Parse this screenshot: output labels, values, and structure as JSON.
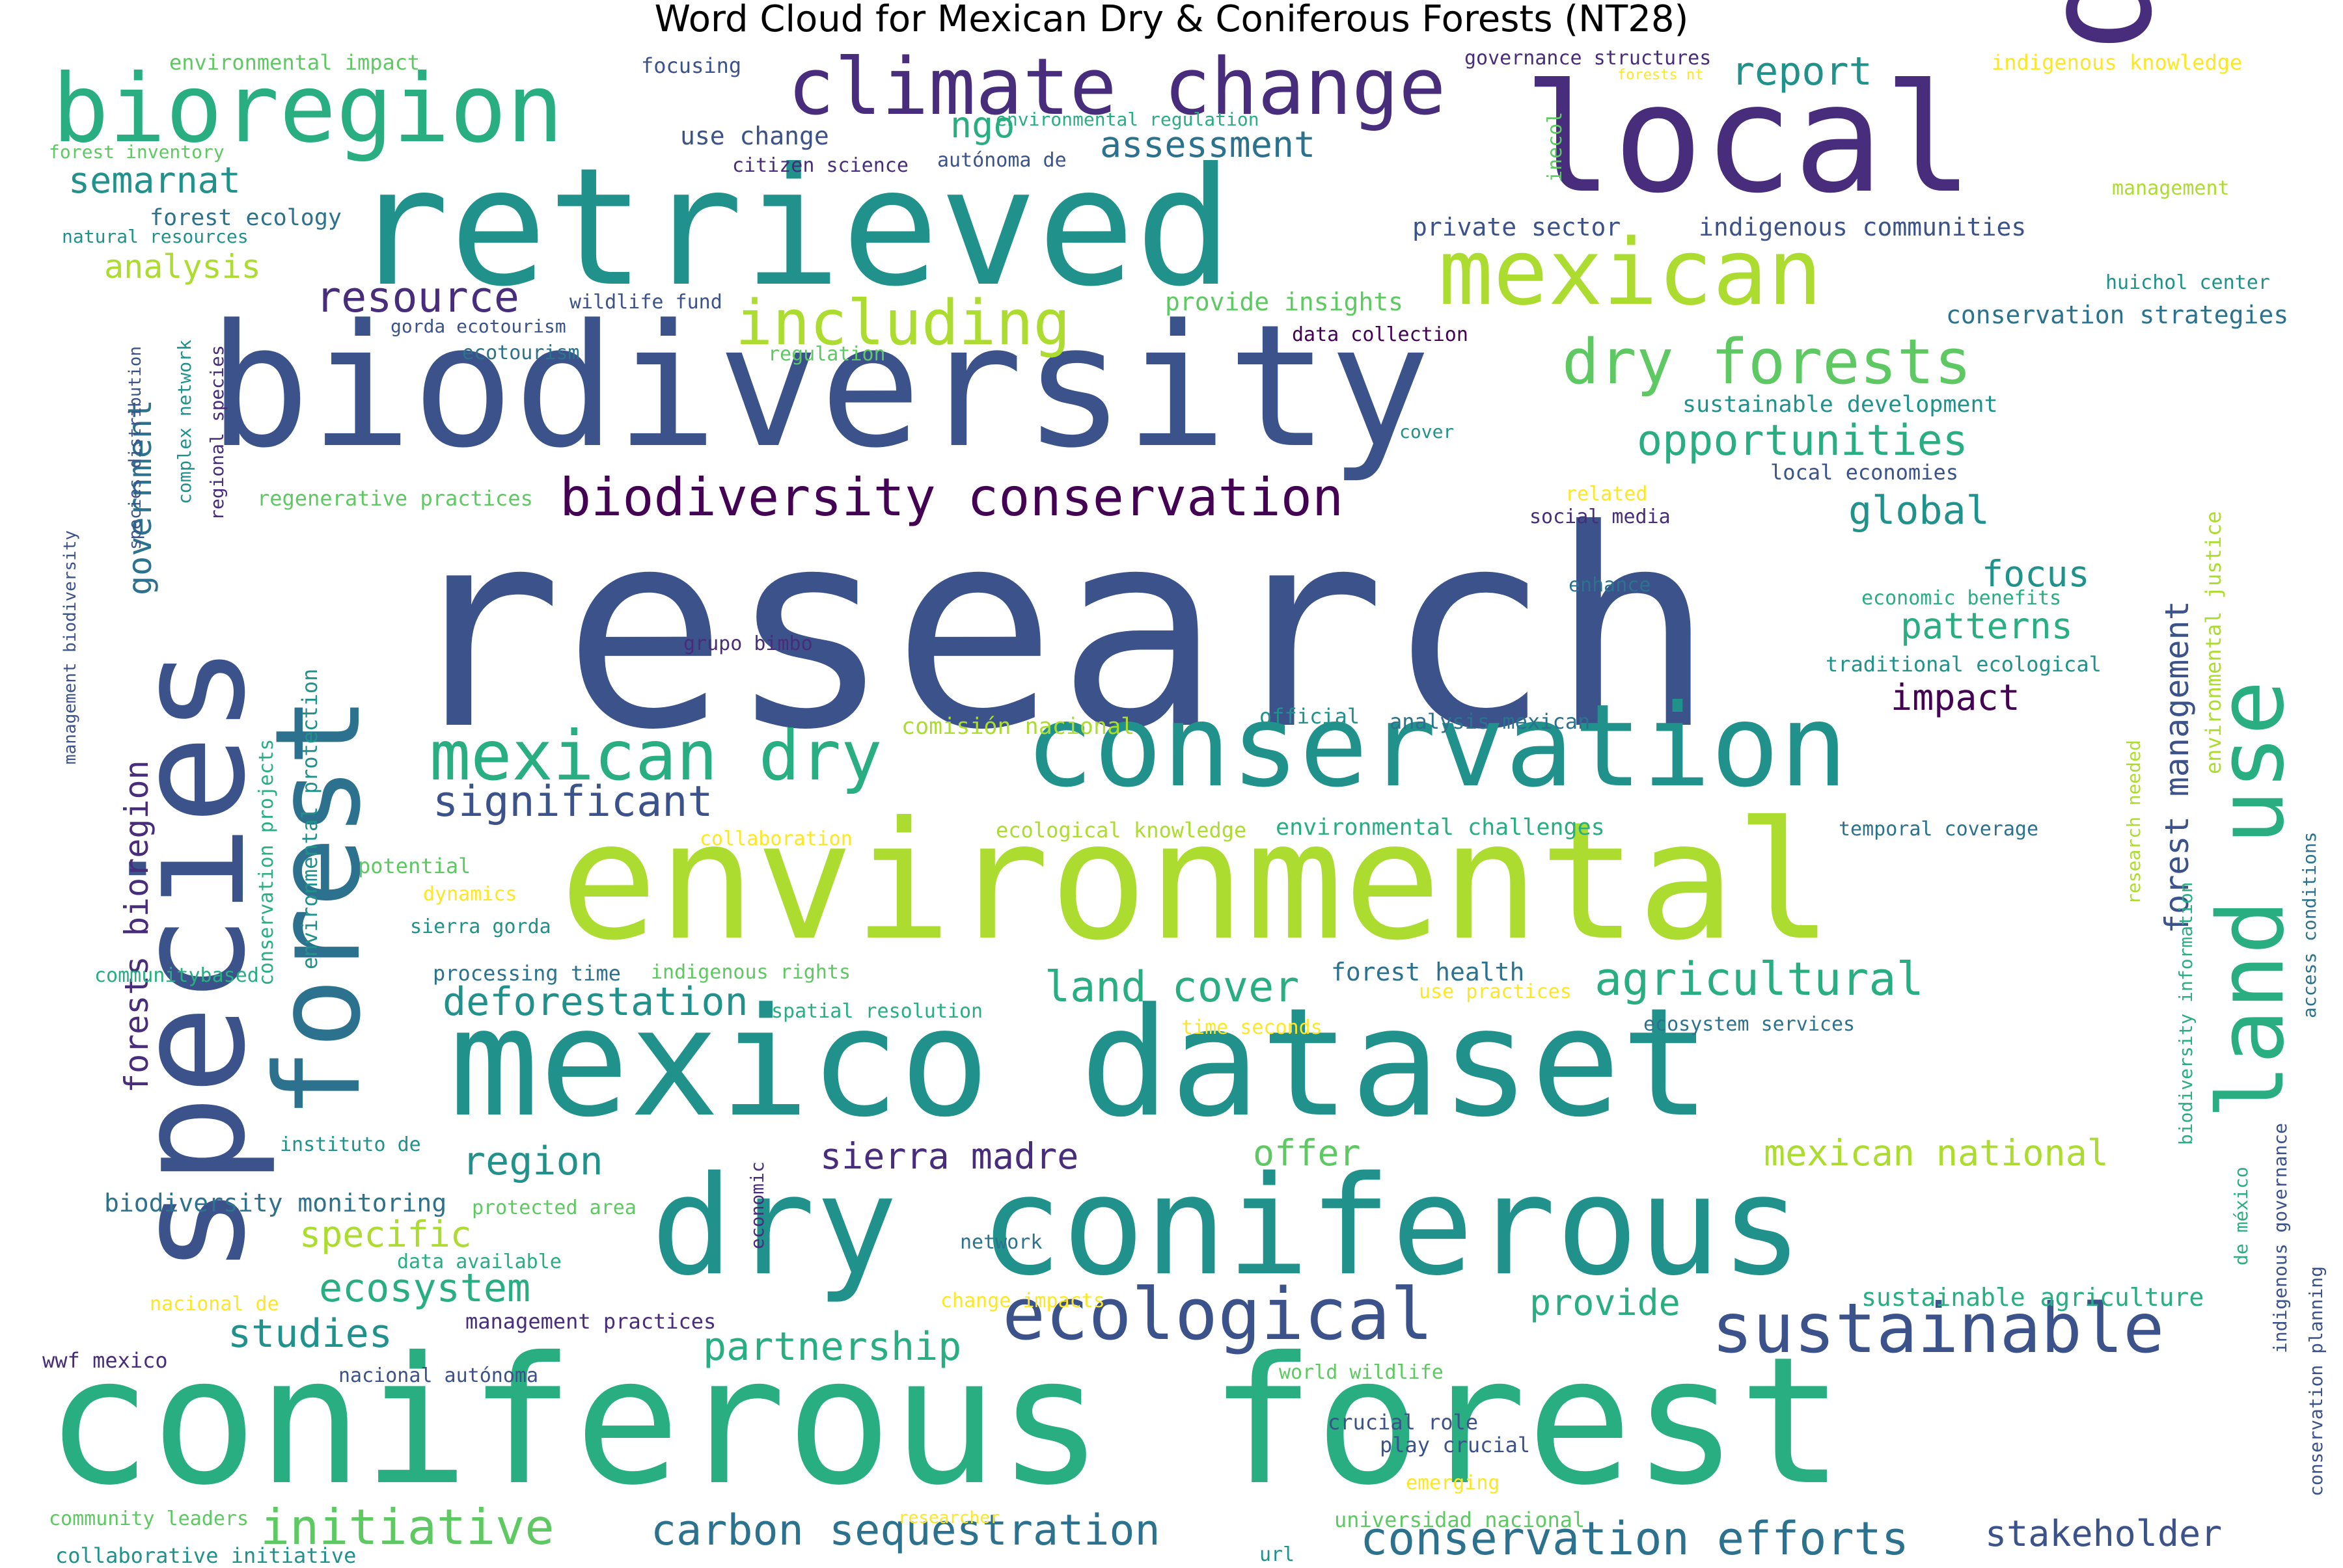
{
  "title": "Word Cloud for Mexican Dry & Coniferous Forests (NT28)",
  "colors": {
    "c0": "#440154",
    "c1": "#472d7b",
    "c2": "#3b528b",
    "c3": "#2c728e",
    "c4": "#21918c",
    "c5": "#28ae80",
    "c6": "#5ec962",
    "c7": "#addc30",
    "c8": "#fde725"
  },
  "words": [
    {
      "text": "research",
      "color": "c2"
    },
    {
      "text": "biodiversity",
      "color": "c2"
    },
    {
      "text": "retrieved",
      "color": "c4"
    },
    {
      "text": "coniferous forest",
      "color": "c5"
    },
    {
      "text": "environmental",
      "color": "c7"
    },
    {
      "text": "mexico dataset",
      "color": "c4"
    },
    {
      "text": "dry coniferous",
      "color": "c4"
    },
    {
      "text": "conservation",
      "color": "c4"
    },
    {
      "text": "local",
      "color": "c1"
    },
    {
      "text": "data",
      "color": "c1"
    },
    {
      "text": "species",
      "color": "c2"
    },
    {
      "text": "forest",
      "color": "c3"
    },
    {
      "text": "land use",
      "color": "c5"
    },
    {
      "text": "bioregion",
      "color": "c5"
    },
    {
      "text": "climate change",
      "color": "c1"
    },
    {
      "text": "mexican",
      "color": "c7"
    },
    {
      "text": "including",
      "color": "c7"
    },
    {
      "text": "dry forests",
      "color": "c6"
    },
    {
      "text": "biodiversity conservation",
      "color": "c0"
    },
    {
      "text": "mexican dry",
      "color": "c5"
    },
    {
      "text": "ecological",
      "color": "c2"
    },
    {
      "text": "sustainable",
      "color": "c2"
    },
    {
      "text": "opportunities",
      "color": "c5"
    },
    {
      "text": "agricultural",
      "color": "c5"
    },
    {
      "text": "land cover",
      "color": "c5"
    },
    {
      "text": "deforestation",
      "color": "c4"
    },
    {
      "text": "significant",
      "color": "c2"
    },
    {
      "text": "resource",
      "color": "c1"
    },
    {
      "text": "region",
      "color": "c4"
    },
    {
      "text": "sierra madre",
      "color": "c1"
    },
    {
      "text": "carbon sequestration",
      "color": "c3"
    },
    {
      "text": "conservation efforts",
      "color": "c3"
    },
    {
      "text": "stakeholder",
      "color": "c2"
    },
    {
      "text": "initiative",
      "color": "c6"
    },
    {
      "text": "partnership",
      "color": "c5"
    },
    {
      "text": "studies",
      "color": "c4"
    },
    {
      "text": "ecosystem",
      "color": "c5"
    },
    {
      "text": "specific",
      "color": "c7"
    },
    {
      "text": "offer",
      "color": "c6"
    },
    {
      "text": "provide",
      "color": "c5"
    },
    {
      "text": "mexican national",
      "color": "c7"
    },
    {
      "text": "impact",
      "color": "c0"
    },
    {
      "text": "patterns",
      "color": "c5"
    },
    {
      "text": "focus",
      "color": "c4"
    },
    {
      "text": "global",
      "color": "c4"
    },
    {
      "text": "report",
      "color": "c4"
    },
    {
      "text": "ngo",
      "color": "c5"
    },
    {
      "text": "assessment",
      "color": "c3"
    },
    {
      "text": "semarnat",
      "color": "c4"
    },
    {
      "text": "analysis",
      "color": "c7"
    },
    {
      "text": "government",
      "color": "c3"
    },
    {
      "text": "forests bioregion",
      "color": "c1"
    },
    {
      "text": "forest management",
      "color": "c2"
    },
    {
      "text": "environmental impact",
      "color": "c6"
    },
    {
      "text": "forest inventory",
      "color": "c6"
    },
    {
      "text": "natural resources",
      "color": "c4"
    },
    {
      "text": "forest ecology",
      "color": "c3"
    },
    {
      "text": "focusing",
      "color": "c2"
    },
    {
      "text": "use change",
      "color": "c2"
    },
    {
      "text": "citizen science",
      "color": "c1"
    },
    {
      "text": "environmental regulation",
      "color": "c5"
    },
    {
      "text": "autónoma de",
      "color": "c2"
    },
    {
      "text": "governance structures",
      "color": "c1"
    },
    {
      "text": "forests nt",
      "color": "c8"
    },
    {
      "text": "inecol",
      "color": "c6"
    },
    {
      "text": "indigenous knowledge",
      "color": "c8"
    },
    {
      "text": "management",
      "color": "c7"
    },
    {
      "text": "private sector",
      "color": "c2"
    },
    {
      "text": "indigenous communities",
      "color": "c2"
    },
    {
      "text": "huichol center",
      "color": "c4"
    },
    {
      "text": "conservation strategies",
      "color": "c3"
    },
    {
      "text": "provide insights",
      "color": "c6"
    },
    {
      "text": "data collection",
      "color": "c0"
    },
    {
      "text": "regulation",
      "color": "c6"
    },
    {
      "text": "wildlife fund",
      "color": "c2"
    },
    {
      "text": "gorda ecotourism",
      "color": "c2"
    },
    {
      "text": "ecotourism",
      "color": "c3"
    },
    {
      "text": "sustainable development",
      "color": "c4"
    },
    {
      "text": "cover",
      "color": "c4"
    },
    {
      "text": "local economies",
      "color": "c2"
    },
    {
      "text": "related",
      "color": "c8"
    },
    {
      "text": "social media",
      "color": "c1"
    },
    {
      "text": "enhance",
      "color": "c3"
    },
    {
      "text": "economic benefits",
      "color": "c5"
    },
    {
      "text": "traditional ecological",
      "color": "c4"
    },
    {
      "text": "environmental justice",
      "color": "c7"
    },
    {
      "text": "grupo bimbo",
      "color": "c1"
    },
    {
      "text": "official",
      "color": "c4"
    },
    {
      "text": "analysis mexican",
      "color": "c3"
    },
    {
      "text": "comisión nacional",
      "color": "c7"
    },
    {
      "text": "ecological knowledge",
      "color": "c7"
    },
    {
      "text": "environmental challenges",
      "color": "c5"
    },
    {
      "text": "temporal coverage",
      "color": "c3"
    },
    {
      "text": "collaboration",
      "color": "c8"
    },
    {
      "text": "research needed",
      "color": "c7"
    },
    {
      "text": "biodiversity information",
      "color": "c5"
    },
    {
      "text": "access conditions",
      "color": "c3"
    },
    {
      "text": "potential",
      "color": "c6"
    },
    {
      "text": "dynamics",
      "color": "c8"
    },
    {
      "text": "sierra gorda",
      "color": "c4"
    },
    {
      "text": "processing time",
      "color": "c3"
    },
    {
      "text": "indigenous rights",
      "color": "c6"
    },
    {
      "text": "communitybased",
      "color": "c5"
    },
    {
      "text": "spatial resolution",
      "color": "c5"
    },
    {
      "text": "forest health",
      "color": "c3"
    },
    {
      "text": "use practices",
      "color": "c8"
    },
    {
      "text": "time seconds",
      "color": "c8"
    },
    {
      "text": "ecosystem services",
      "color": "c3"
    },
    {
      "text": "instituto de",
      "color": "c4"
    },
    {
      "text": "biodiversity monitoring",
      "color": "c3"
    },
    {
      "text": "protected area",
      "color": "c6"
    },
    {
      "text": "economic",
      "color": "c1"
    },
    {
      "text": "network",
      "color": "c3"
    },
    {
      "text": "data available",
      "color": "c5"
    },
    {
      "text": "nacional de",
      "color": "c8"
    },
    {
      "text": "change impacts",
      "color": "c8"
    },
    {
      "text": "management practices",
      "color": "c1"
    },
    {
      "text": "sustainable agriculture",
      "color": "c5"
    },
    {
      "text": "wwf mexico",
      "color": "c1"
    },
    {
      "text": "nacional autónoma",
      "color": "c2"
    },
    {
      "text": "world wildlife",
      "color": "c6"
    },
    {
      "text": "crucial role",
      "color": "c2"
    },
    {
      "text": "play crucial",
      "color": "c2"
    },
    {
      "text": "emerging",
      "color": "c8"
    },
    {
      "text": "community leaders",
      "color": "c6"
    },
    {
      "text": "researcher",
      "color": "c8"
    },
    {
      "text": "universidad nacional",
      "color": "c6"
    },
    {
      "text": "url",
      "color": "c4"
    },
    {
      "text": "collaborative initiative",
      "color": "c4"
    },
    {
      "text": "de méxico",
      "color": "c5"
    },
    {
      "text": "indigenous governance",
      "color": "c2"
    },
    {
      "text": "conservation planning",
      "color": "c2"
    },
    {
      "text": "regional species",
      "color": "c1"
    },
    {
      "text": "species distribution",
      "color": "c2"
    },
    {
      "text": "complex network",
      "color": "c4"
    },
    {
      "text": "management biodiversity",
      "color": "c2"
    },
    {
      "text": "regenerative practices",
      "color": "c6"
    },
    {
      "text": "conservation projects",
      "color": "c5"
    },
    {
      "text": "environmental protection",
      "color": "c4"
    }
  ]
}
